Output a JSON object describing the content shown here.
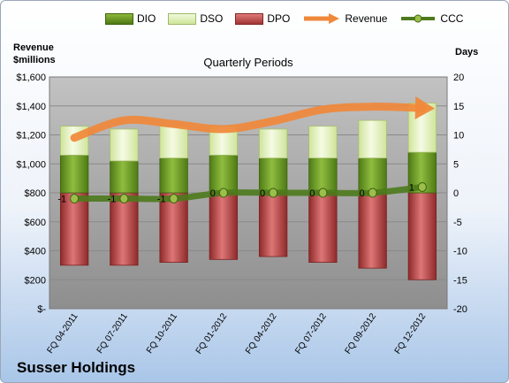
{
  "company": "Susser Holdings",
  "chart_data": {
    "type": "bar",
    "title": "Quarterly Periods",
    "ylabel_left": "Revenue\n$millions",
    "ylabel_right": "Days",
    "categories": [
      "FQ 04-2011",
      "FQ 07-2011",
      "FQ 10-2011",
      "FQ 01-2012",
      "FQ 04-2012",
      "FQ 07-2012",
      "FQ 09-2012",
      "FQ 12-2012"
    ],
    "ylim_left": [
      0,
      1600
    ],
    "yticks_left": [
      "$-",
      "$200",
      "$400",
      "$600",
      "$800",
      "$1,000",
      "$1,200",
      "$1,400",
      "$1,600"
    ],
    "ylim_right": [
      -20,
      20
    ],
    "yticks_right": [
      "-20",
      "-15",
      "-10",
      "-5",
      "0",
      "5",
      "10",
      "15",
      "20"
    ],
    "series": [
      {
        "name": "DIO",
        "axis": "right",
        "kind": "stacked-bar",
        "values": [
          6.5,
          5.5,
          6.0,
          6.5,
          6.0,
          6.0,
          6.0,
          7.0
        ]
      },
      {
        "name": "DSO",
        "axis": "right",
        "kind": "stacked-bar",
        "values": [
          5.0,
          5.5,
          5.5,
          5.0,
          5.0,
          5.5,
          6.5,
          8.5
        ]
      },
      {
        "name": "DPO",
        "axis": "right",
        "kind": "bar-below",
        "values": [
          -12.5,
          -12.5,
          -12.0,
          -11.5,
          -11.0,
          -12.0,
          -13.0,
          -15.0
        ]
      },
      {
        "name": "Revenue",
        "axis": "left",
        "kind": "line",
        "values": [
          1180,
          1300,
          1275,
          1240,
          1295,
          1375,
          1395,
          1385
        ]
      },
      {
        "name": "CCC",
        "axis": "right",
        "kind": "line",
        "values": [
          -1,
          -1,
          -1,
          0,
          0,
          0,
          0,
          1
        ]
      }
    ],
    "ccc_labels": [
      "-1",
      "-1",
      "-1",
      "0",
      "0",
      "0",
      "0",
      "1"
    ],
    "legend": "top",
    "grid": true
  },
  "colors": {
    "dio": "#6c9a26",
    "dso": "#e4f1c0",
    "dpo": "#b84545",
    "revenue": "#f0883a",
    "ccc": "#4d7a1c"
  }
}
